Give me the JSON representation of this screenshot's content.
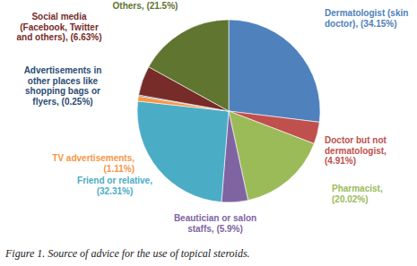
{
  "chart_data": {
    "type": "pie",
    "title": "Figure 1. Source of advice for the use of topical steroids.",
    "categories": [
      "Dermatologist (skin doctor),",
      "Doctor but not dermatologist,",
      "Pharmacist,",
      "Beautician or salon staffs,",
      "Friend or relative,",
      "TV advertisements,",
      "Advertisements in other places like shopping bags or flyers,",
      "Social media (Facebook, Twitter and others),",
      "Others,"
    ],
    "values": [
      34.15,
      4.91,
      20.02,
      5.9,
      32.31,
      1.11,
      0.25,
      6.63,
      21.5
    ],
    "value_labels": [
      "(34.15%)",
      "(4.91%)",
      "(20.02%)",
      "(5.9%)",
      "(32.31%)",
      "(1.11%)",
      "(0.25%)",
      "(6.63%)",
      "(21.5%)"
    ],
    "colors": [
      "#4f81bd",
      "#c0504d",
      "#9bbb59",
      "#8064a2",
      "#4bacc6",
      "#f79646",
      "#2c4d75",
      "#772c2a",
      "#5f7530"
    ],
    "data_labels": true
  }
}
